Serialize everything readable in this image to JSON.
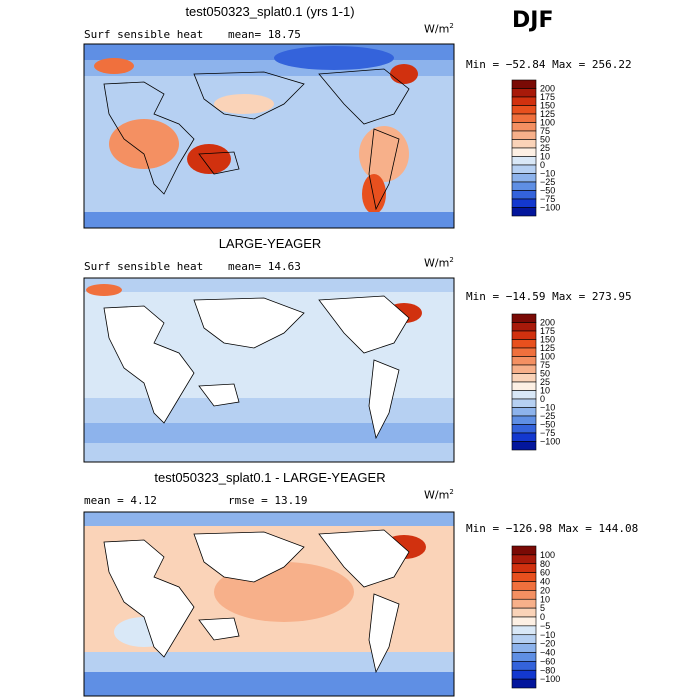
{
  "season": "DJF",
  "panels": [
    {
      "title": "test050323_splat0.1 (yrs 1-1)",
      "variable": "Surf sensible heat",
      "stat_left": "mean=  18.75",
      "stat_right": "",
      "units": "W/m",
      "units_exp": "2",
      "minmax": "Min = −52.84 Max = 256.22",
      "colorbar": {
        "levels": [
          "200",
          "175",
          "150",
          "125",
          "100",
          "75",
          "50",
          "25",
          "10",
          "0",
          "−10",
          "−25",
          "−50",
          "−75",
          "−100"
        ],
        "colors": [
          "#7a0a05",
          "#a81a0a",
          "#d1310f",
          "#e8501e",
          "#f0703d",
          "#f49062",
          "#f7b08a",
          "#fad3b8",
          "#fdf0e4",
          "#d9e8f7",
          "#b6d0f2",
          "#8db3ec",
          "#5f8fe4",
          "#3463db",
          "#1338cf",
          "#03169c"
        ]
      }
    },
    {
      "title": "LARGE-YEAGER",
      "variable": "Surf sensible heat",
      "stat_left": "mean=  14.63",
      "stat_right": "",
      "units": "W/m",
      "units_exp": "2",
      "minmax": "Min = −14.59 Max = 273.95",
      "colorbar": {
        "levels": [
          "200",
          "175",
          "150",
          "125",
          "100",
          "75",
          "50",
          "25",
          "10",
          "0",
          "−10",
          "−25",
          "−50",
          "−75",
          "−100"
        ],
        "colors": [
          "#7a0a05",
          "#a81a0a",
          "#d1310f",
          "#e8501e",
          "#f0703d",
          "#f49062",
          "#f7b08a",
          "#fad3b8",
          "#fdf0e4",
          "#d9e8f7",
          "#b6d0f2",
          "#8db3ec",
          "#5f8fe4",
          "#3463db",
          "#1338cf",
          "#03169c"
        ]
      }
    },
    {
      "title": "test050323_splat0.1 - LARGE-YEAGER",
      "variable": "",
      "stat_left": "mean =   4.12",
      "stat_right": "rmse =  13.19",
      "units": "W/m",
      "units_exp": "2",
      "minmax": "Min = −126.98 Max = 144.08",
      "colorbar": {
        "levels": [
          "100",
          "80",
          "60",
          "40",
          "20",
          "10",
          "5",
          "0",
          "−5",
          "−10",
          "−20",
          "−40",
          "−60",
          "−80",
          "−100"
        ],
        "colors": [
          "#7a0a05",
          "#a81a0a",
          "#d1310f",
          "#e8501e",
          "#f0703d",
          "#f49062",
          "#f7b08a",
          "#fad3b8",
          "#fdf0e4",
          "#d9e8f7",
          "#b6d0f2",
          "#8db3ec",
          "#5f8fe4",
          "#3463db",
          "#1338cf",
          "#03169c"
        ]
      }
    }
  ]
}
